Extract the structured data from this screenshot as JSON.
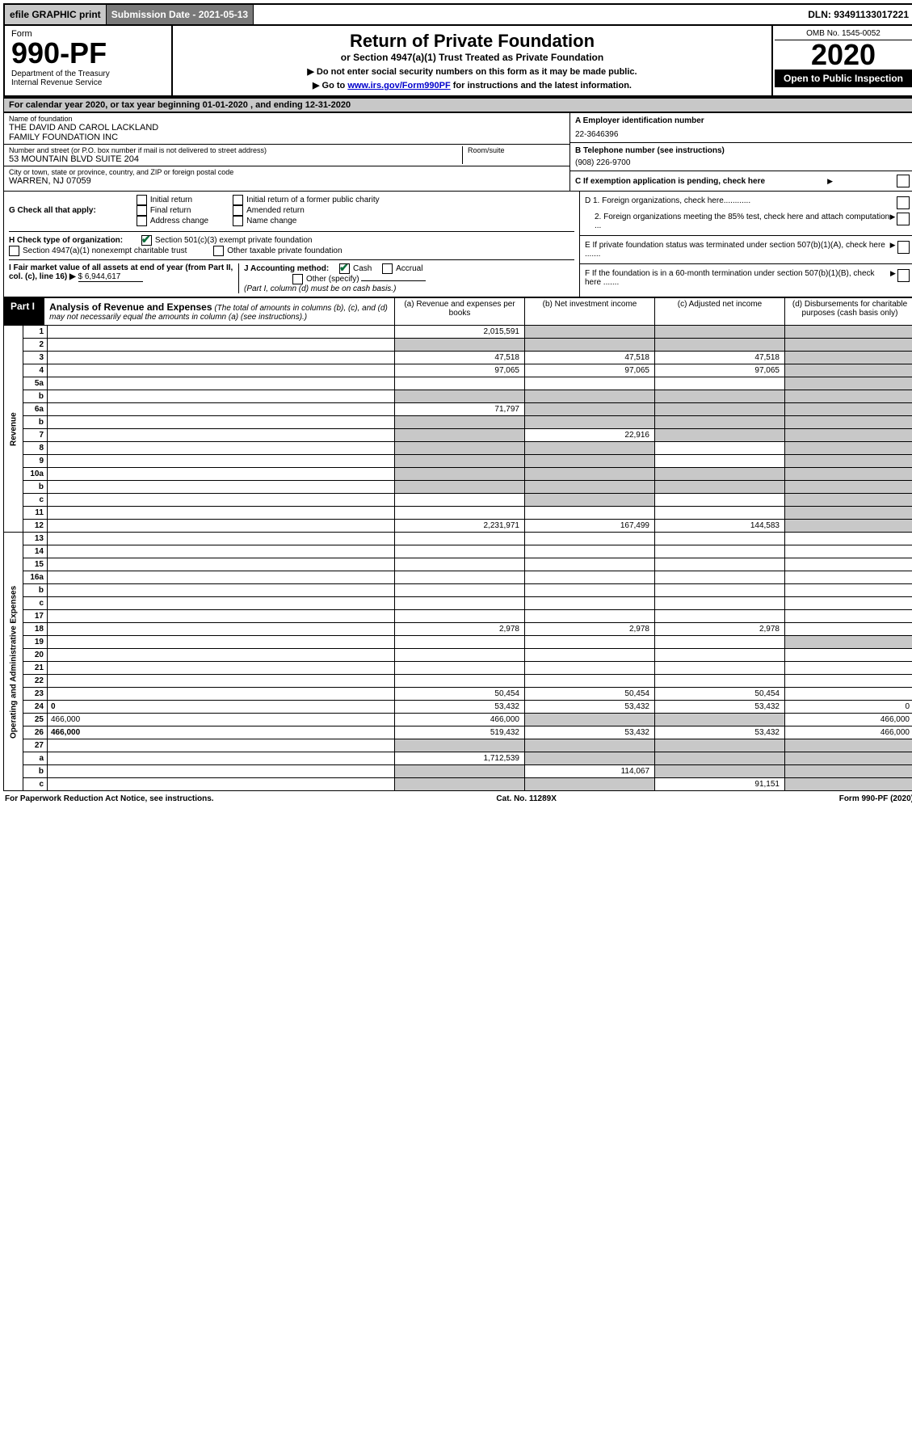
{
  "topbar": {
    "efile": "efile GRAPHIC print",
    "subdate": "Submission Date - 2021-05-13",
    "dln": "DLN: 93491133017221"
  },
  "header": {
    "form_label": "Form",
    "form_num": "990-PF",
    "dept": "Department of the Treasury\nInternal Revenue Service",
    "title": "Return of Private Foundation",
    "subtitle": "or Section 4947(a)(1) Trust Treated as Private Foundation",
    "instr1": "▶ Do not enter social security numbers on this form as it may be made public.",
    "instr2_prefix": "▶ Go to ",
    "instr2_link": "www.irs.gov/Form990PF",
    "instr2_suffix": " for instructions and the latest information.",
    "omb": "OMB No. 1545-0052",
    "year": "2020",
    "open": "Open to Public Inspection"
  },
  "calrow": "For calendar year 2020, or tax year beginning 01-01-2020                          , and ending 12-31-2020",
  "id": {
    "name_lbl": "Name of foundation",
    "name_val": "THE DAVID AND CAROL LACKLAND\nFAMILY FOUNDATION INC",
    "addr_lbl": "Number and street (or P.O. box number if mail is not delivered to street address)",
    "addr_val": "53 MOUNTAIN BLVD SUITE 204",
    "room_lbl": "Room/suite",
    "city_lbl": "City or town, state or province, country, and ZIP or foreign postal code",
    "city_val": "WARREN, NJ  07059",
    "a_lbl": "A Employer identification number",
    "a_val": "22-3646396",
    "b_lbl": "B Telephone number (see instructions)",
    "b_val": "(908) 226-9700",
    "c_lbl": "C If exemption application is pending, check here"
  },
  "g": {
    "g_label": "G Check all that apply:",
    "g_opts": [
      "Initial return",
      "Final return",
      "Address change",
      "Initial return of a former public charity",
      "Amended return",
      "Name change"
    ],
    "h_label": "H Check type of organization:",
    "h_opts": [
      "Section 501(c)(3) exempt private foundation",
      "Section 4947(a)(1) nonexempt charitable trust",
      "Other taxable private foundation"
    ],
    "i_label": "I Fair market value of all assets at end of year (from Part II, col. (c), line 16) ▶",
    "i_val": "$  6,944,617",
    "j_label": "J Accounting method:",
    "j_opts": [
      "Cash",
      "Accrual"
    ],
    "j_other": "Other (specify)",
    "j_note": "(Part I, column (d) must be on cash basis.)",
    "d1": "D 1. Foreign organizations, check here............",
    "d2": "2. Foreign organizations meeting the 85% test, check here and attach computation ...",
    "e": "E  If private foundation status was terminated under section 507(b)(1)(A), check here .......",
    "f": "F  If the foundation is in a 60-month termination under section 507(b)(1)(B), check here ......."
  },
  "part1": {
    "label": "Part I",
    "title": "Analysis of Revenue and Expenses",
    "title_note": "(The total of amounts in columns (b), (c), and (d) may not necessarily equal the amounts in column (a) (see instructions).)",
    "col_a": "(a) Revenue and expenses per books",
    "col_b": "(b) Net investment income",
    "col_c": "(c) Adjusted net income",
    "col_d": "(d) Disbursements for charitable purposes (cash basis only)"
  },
  "rows": [
    {
      "n": "1",
      "d": "",
      "a": "2,015,591",
      "b": "",
      "c": "",
      "a_grey": false,
      "b_grey": true,
      "c_grey": true,
      "d_grey": true,
      "bold": false
    },
    {
      "n": "2",
      "d": "",
      "a": "",
      "b": "",
      "c": "",
      "a_grey": true,
      "b_grey": true,
      "c_grey": true,
      "d_grey": true
    },
    {
      "n": "3",
      "d": "",
      "a": "47,518",
      "b": "47,518",
      "c": "47,518",
      "d_grey": true
    },
    {
      "n": "4",
      "d": "",
      "a": "97,065",
      "b": "97,065",
      "c": "97,065",
      "d_grey": true
    },
    {
      "n": "5a",
      "d": "",
      "a": "",
      "b": "",
      "c": "",
      "d_grey": true
    },
    {
      "n": "b",
      "d": "",
      "a": "",
      "b": "",
      "c": "",
      "a_grey": true,
      "b_grey": true,
      "c_grey": true,
      "d_grey": true,
      "inline": true
    },
    {
      "n": "6a",
      "d": "",
      "a": "71,797",
      "b": "",
      "c": "",
      "b_grey": true,
      "c_grey": true,
      "d_grey": true
    },
    {
      "n": "b",
      "d": "",
      "a": "",
      "b": "",
      "c": "",
      "a_grey": true,
      "b_grey": true,
      "c_grey": true,
      "d_grey": true,
      "inline": true
    },
    {
      "n": "7",
      "d": "",
      "a": "",
      "b": "22,916",
      "c": "",
      "a_grey": true,
      "c_grey": true,
      "d_grey": true
    },
    {
      "n": "8",
      "d": "",
      "a": "",
      "b": "",
      "c": "",
      "a_grey": true,
      "b_grey": true,
      "d_grey": true
    },
    {
      "n": "9",
      "d": "",
      "a": "",
      "b": "",
      "c": "",
      "a_grey": true,
      "b_grey": true,
      "d_grey": true
    },
    {
      "n": "10a",
      "d": "",
      "a": "",
      "b": "",
      "c": "",
      "a_grey": true,
      "b_grey": true,
      "c_grey": true,
      "d_grey": true,
      "inline": true
    },
    {
      "n": "b",
      "d": "",
      "a": "",
      "b": "",
      "c": "",
      "a_grey": true,
      "b_grey": true,
      "c_grey": true,
      "d_grey": true,
      "inline": true
    },
    {
      "n": "c",
      "d": "",
      "a": "",
      "b": "",
      "c": "",
      "b_grey": true,
      "d_grey": true
    },
    {
      "n": "11",
      "d": "",
      "a": "",
      "b": "",
      "c": "",
      "d_grey": true
    },
    {
      "n": "12",
      "d": "",
      "a": "2,231,971",
      "b": "167,499",
      "c": "144,583",
      "d_grey": true,
      "bold": true
    },
    {
      "n": "13",
      "d": "",
      "a": "",
      "b": "",
      "c": ""
    },
    {
      "n": "14",
      "d": "",
      "a": "",
      "b": "",
      "c": ""
    },
    {
      "n": "15",
      "d": "",
      "a": "",
      "b": "",
      "c": ""
    },
    {
      "n": "16a",
      "d": "",
      "a": "",
      "b": "",
      "c": ""
    },
    {
      "n": "b",
      "d": "",
      "a": "",
      "b": "",
      "c": ""
    },
    {
      "n": "c",
      "d": "",
      "a": "",
      "b": "",
      "c": ""
    },
    {
      "n": "17",
      "d": "",
      "a": "",
      "b": "",
      "c": ""
    },
    {
      "n": "18",
      "d": "",
      "a": "2,978",
      "b": "2,978",
      "c": "2,978"
    },
    {
      "n": "19",
      "d": "",
      "a": "",
      "b": "",
      "c": "",
      "d_grey": true
    },
    {
      "n": "20",
      "d": "",
      "a": "",
      "b": "",
      "c": ""
    },
    {
      "n": "21",
      "d": "",
      "a": "",
      "b": "",
      "c": ""
    },
    {
      "n": "22",
      "d": "",
      "a": "",
      "b": "",
      "c": ""
    },
    {
      "n": "23",
      "d": "",
      "a": "50,454",
      "b": "50,454",
      "c": "50,454"
    },
    {
      "n": "24",
      "d": "0",
      "a": "53,432",
      "b": "53,432",
      "c": "53,432",
      "bold": true
    },
    {
      "n": "25",
      "d": "466,000",
      "a": "466,000",
      "b": "",
      "c": "",
      "b_grey": true,
      "c_grey": true
    },
    {
      "n": "26",
      "d": "466,000",
      "a": "519,432",
      "b": "53,432",
      "c": "53,432",
      "bold": true
    },
    {
      "n": "27",
      "d": "",
      "a": "",
      "b": "",
      "c": "",
      "a_grey": true,
      "b_grey": true,
      "c_grey": true,
      "d_grey": true
    },
    {
      "n": "a",
      "d": "",
      "a": "1,712,539",
      "b": "",
      "c": "",
      "b_grey": true,
      "c_grey": true,
      "d_grey": true,
      "bold": true
    },
    {
      "n": "b",
      "d": "",
      "a": "",
      "b": "114,067",
      "c": "",
      "a_grey": true,
      "c_grey": true,
      "d_grey": true,
      "bold": true
    },
    {
      "n": "c",
      "d": "",
      "a": "",
      "b": "",
      "c": "91,151",
      "a_grey": true,
      "b_grey": true,
      "d_grey": true,
      "bold": true
    }
  ],
  "sidelabels": {
    "revenue": "Revenue",
    "expenses": "Operating and Administrative Expenses"
  },
  "footer": {
    "left": "For Paperwork Reduction Act Notice, see instructions.",
    "mid": "Cat. No. 11289X",
    "right": "Form 990-PF (2020)"
  }
}
